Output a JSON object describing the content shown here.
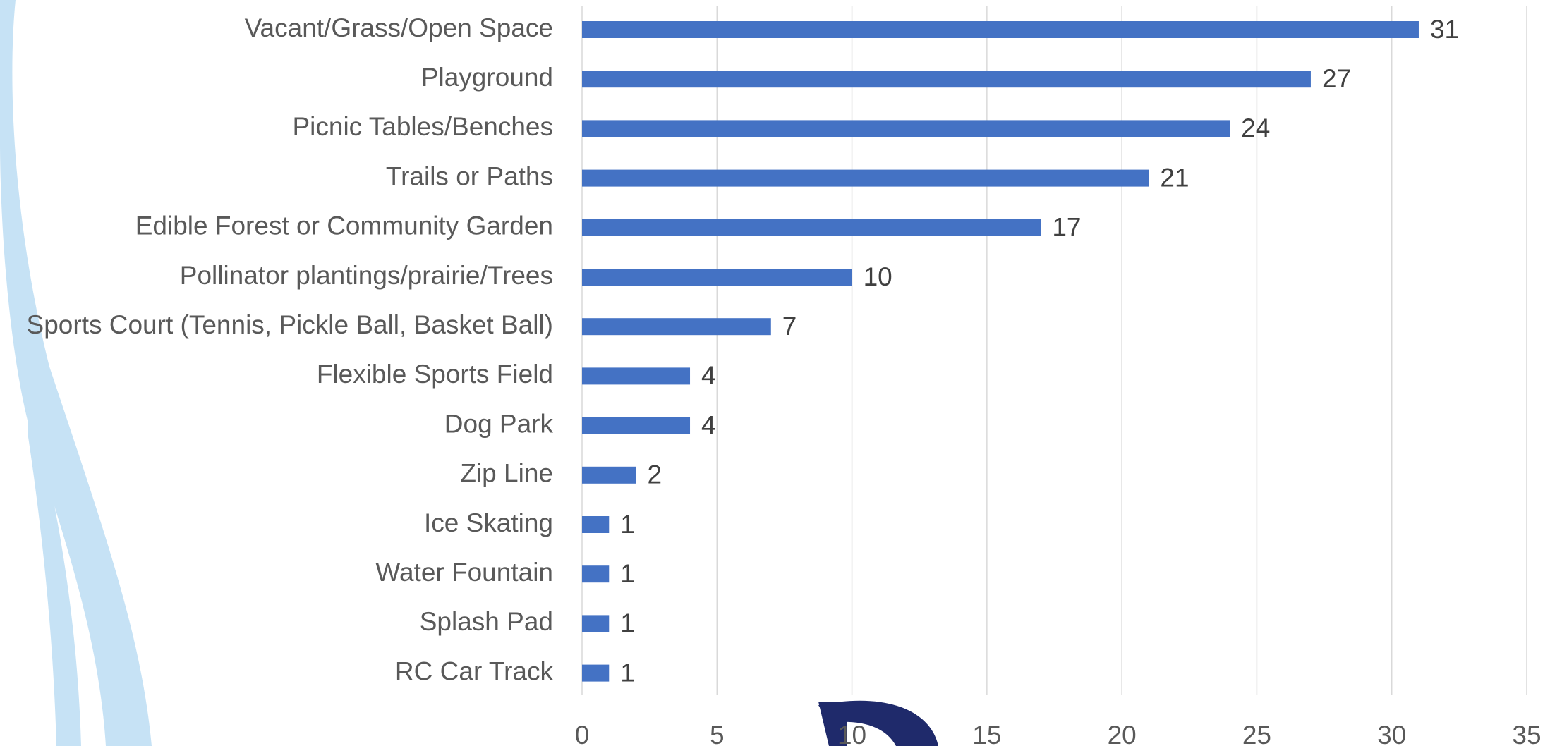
{
  "chart_data": {
    "type": "bar",
    "orientation": "horizontal",
    "categories": [
      "Vacant/Grass/Open Space",
      "Playground",
      "Picnic Tables/Benches",
      "Trails or Paths",
      "Edible Forest or Community Garden",
      "Pollinator plantings/prairie/Trees",
      "Sports Court (Tennis, Pickle Ball, Basket Ball)",
      "Flexible Sports Field",
      "Dog Park",
      "Zip Line",
      "Ice Skating",
      "Water Fountain",
      "Splash Pad",
      "RC Car Track"
    ],
    "values": [
      31,
      27,
      24,
      21,
      17,
      10,
      7,
      4,
      4,
      2,
      1,
      1,
      1,
      1
    ],
    "color": "#4472c4",
    "xlim": [
      0,
      35
    ],
    "xticks": [
      0,
      5,
      10,
      15,
      20,
      25,
      30,
      35
    ],
    "grid": true
  }
}
